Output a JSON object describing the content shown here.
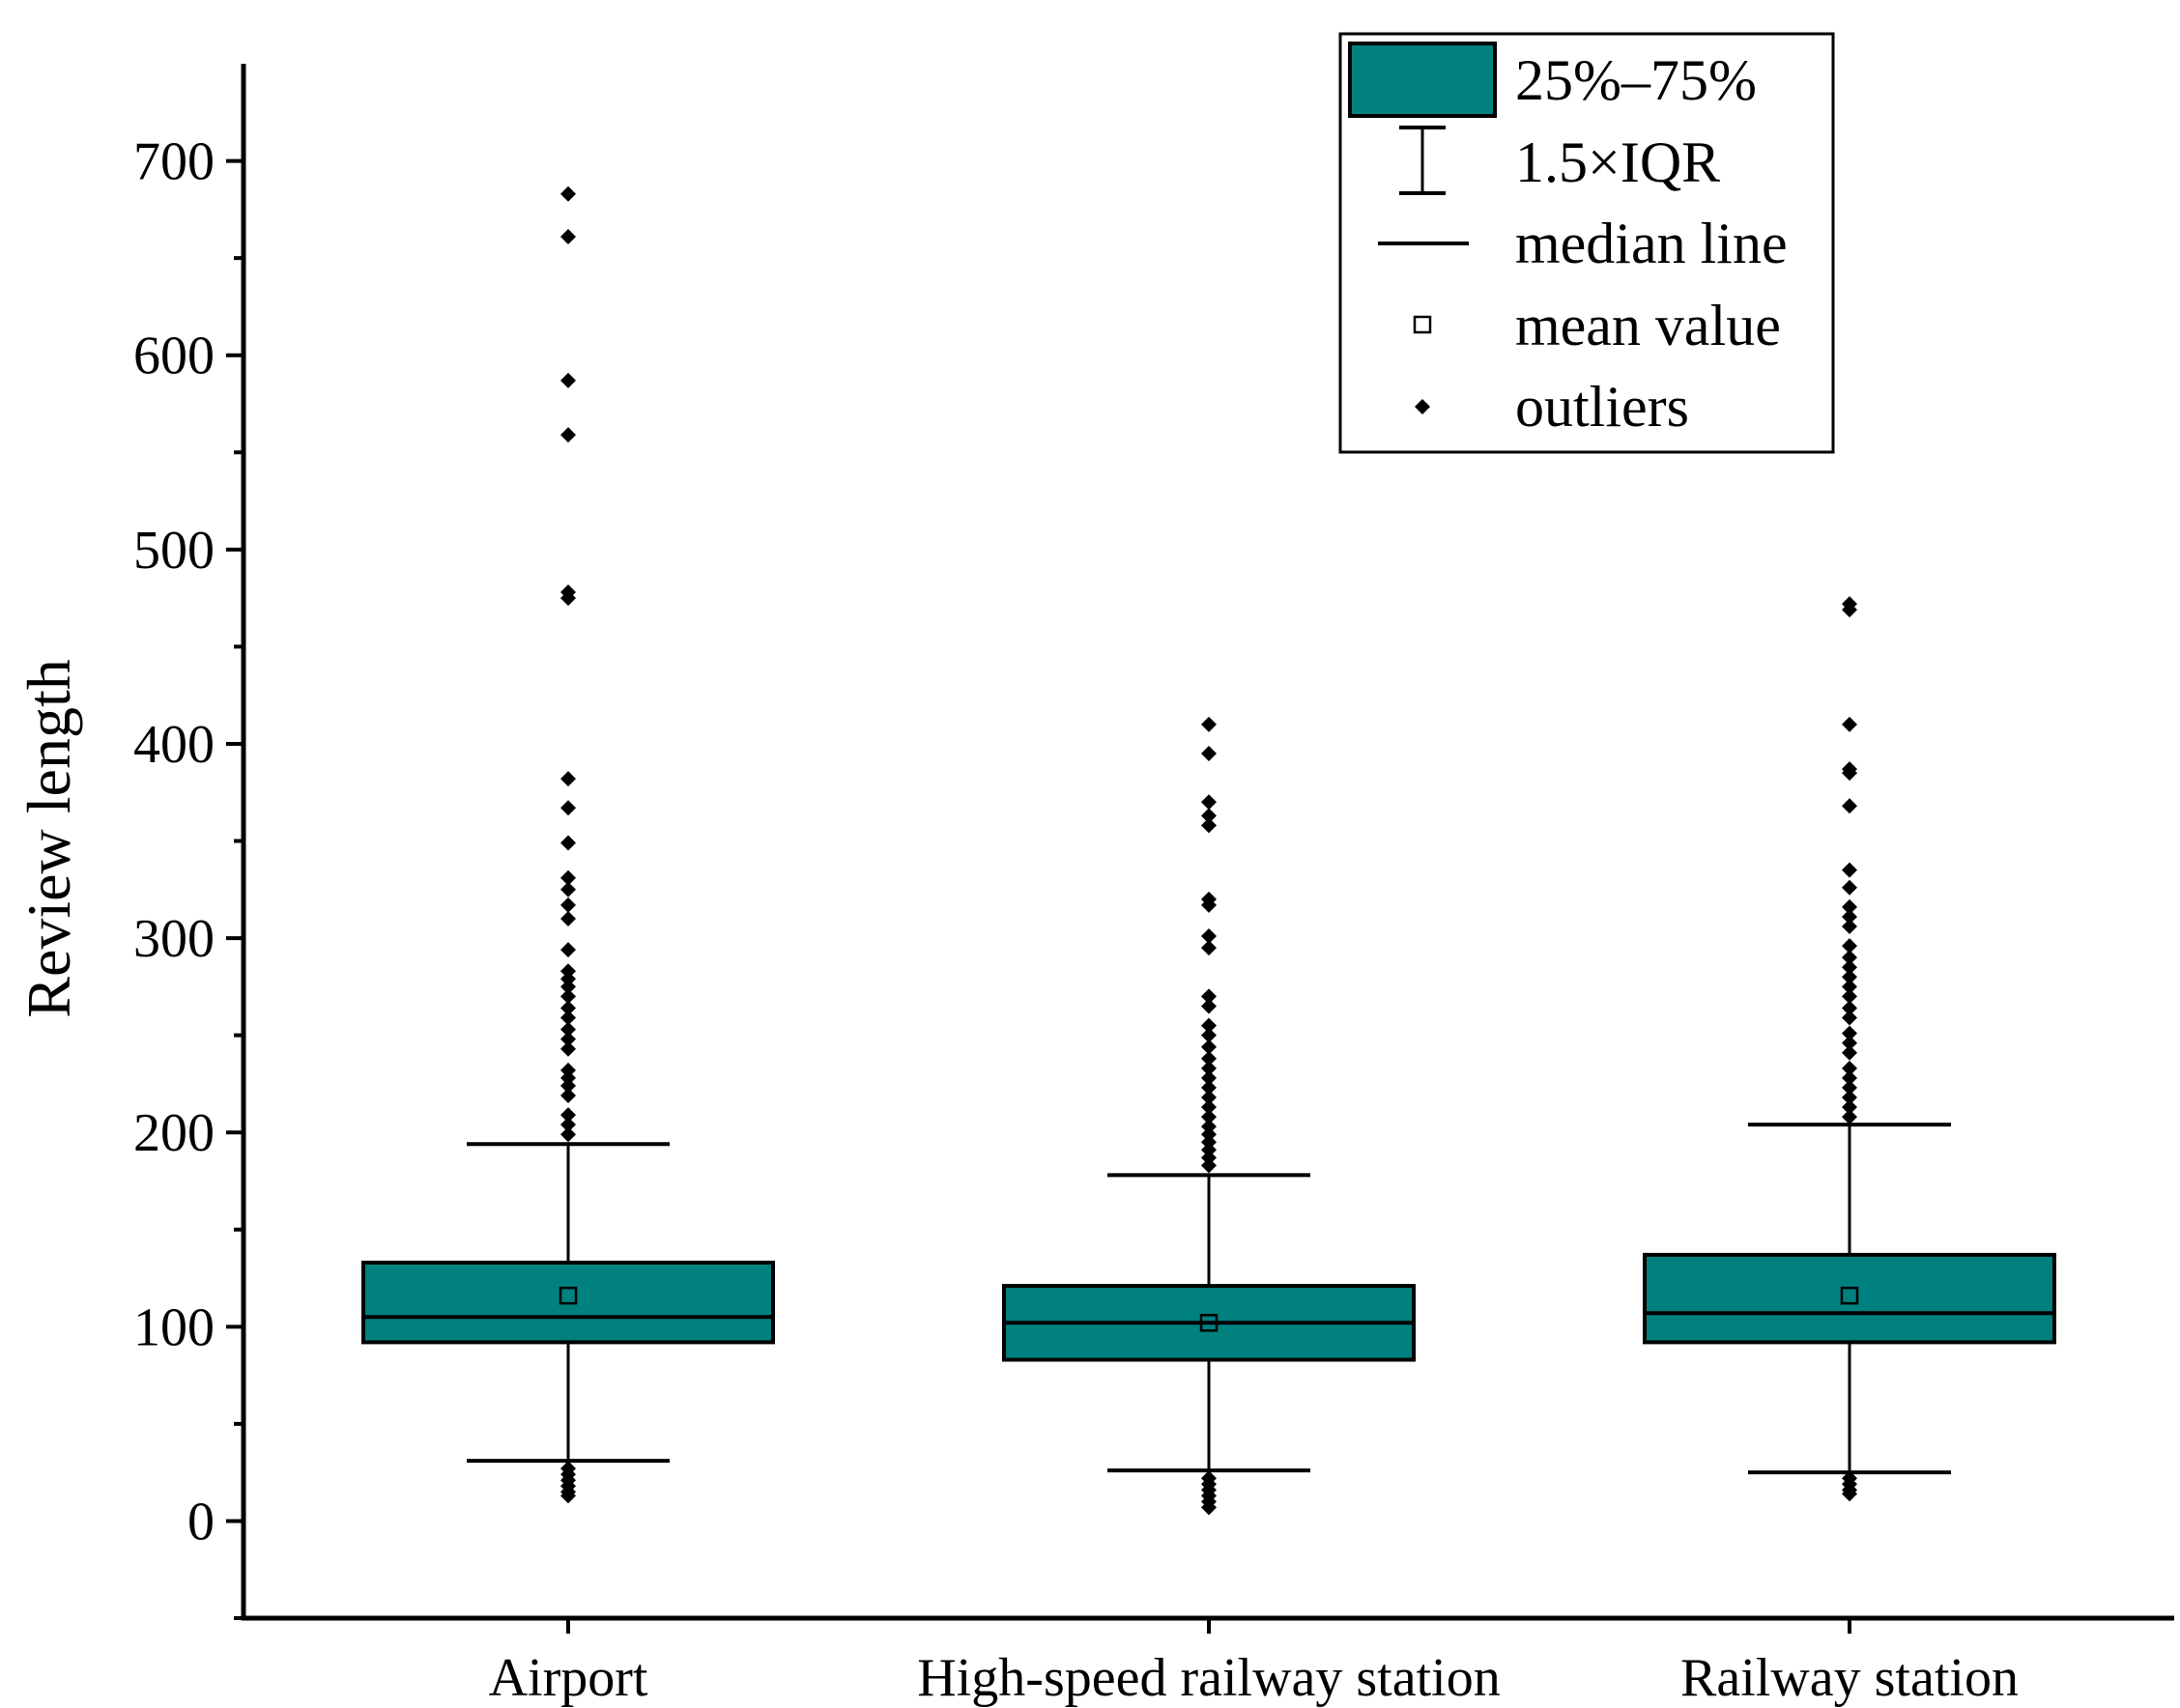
{
  "chart_data": {
    "type": "box",
    "title": "",
    "xlabel": "",
    "ylabel": "Review length",
    "ylim": [
      -50,
      750
    ],
    "yticks": [
      0,
      100,
      200,
      300,
      400,
      500,
      600,
      700
    ],
    "ytick_labels": [
      "0",
      "100",
      "200",
      "300",
      "400",
      "500",
      "600",
      "700"
    ],
    "categories": [
      "Airport",
      "High-speed railway station",
      "Railway station"
    ],
    "box_color": "#00807f",
    "boxes": [
      {
        "name": "Airport",
        "q1": 92,
        "median": 105,
        "q3": 133,
        "mean": 116,
        "whisker_low": 31,
        "whisker_high": 194,
        "outliers": [
          683,
          661,
          587,
          559,
          478,
          475,
          382,
          367,
          349,
          331,
          325,
          317,
          310,
          294,
          283,
          279,
          275,
          270,
          264,
          259,
          253,
          248,
          243,
          232,
          228,
          224,
          219,
          209,
          204,
          199,
          27,
          24,
          21,
          18,
          15,
          13
        ]
      },
      {
        "name": "High-speed railway station",
        "q1": 83,
        "median": 102,
        "q3": 121,
        "mean": 102,
        "whisker_low": 26,
        "whisker_high": 178,
        "outliers": [
          410,
          395,
          370,
          363,
          358,
          320,
          317,
          301,
          295,
          270,
          265,
          255,
          250,
          244,
          238,
          233,
          228,
          223,
          218,
          213,
          208,
          203,
          199,
          195,
          191,
          187,
          183,
          22,
          19,
          16,
          13,
          10,
          7
        ]
      },
      {
        "name": "Railway station",
        "q1": 92,
        "median": 107,
        "q3": 137,
        "mean": 116,
        "whisker_low": 25,
        "whisker_high": 204,
        "outliers": [
          472,
          469,
          410,
          387,
          385,
          368,
          335,
          326,
          316,
          311,
          306,
          296,
          290,
          285,
          280,
          275,
          270,
          264,
          259,
          251,
          246,
          241,
          233,
          228,
          223,
          218,
          213,
          208,
          22,
          19,
          16,
          14
        ]
      }
    ],
    "legend": {
      "position": "top-right",
      "items": [
        {
          "symbol": "box",
          "label": "25%–75%"
        },
        {
          "symbol": "whisker",
          "label": "1.5×IQR"
        },
        {
          "symbol": "median",
          "label": "median line"
        },
        {
          "symbol": "mean",
          "label": "mean value"
        },
        {
          "symbol": "outlier",
          "label": "outliers"
        }
      ]
    }
  }
}
